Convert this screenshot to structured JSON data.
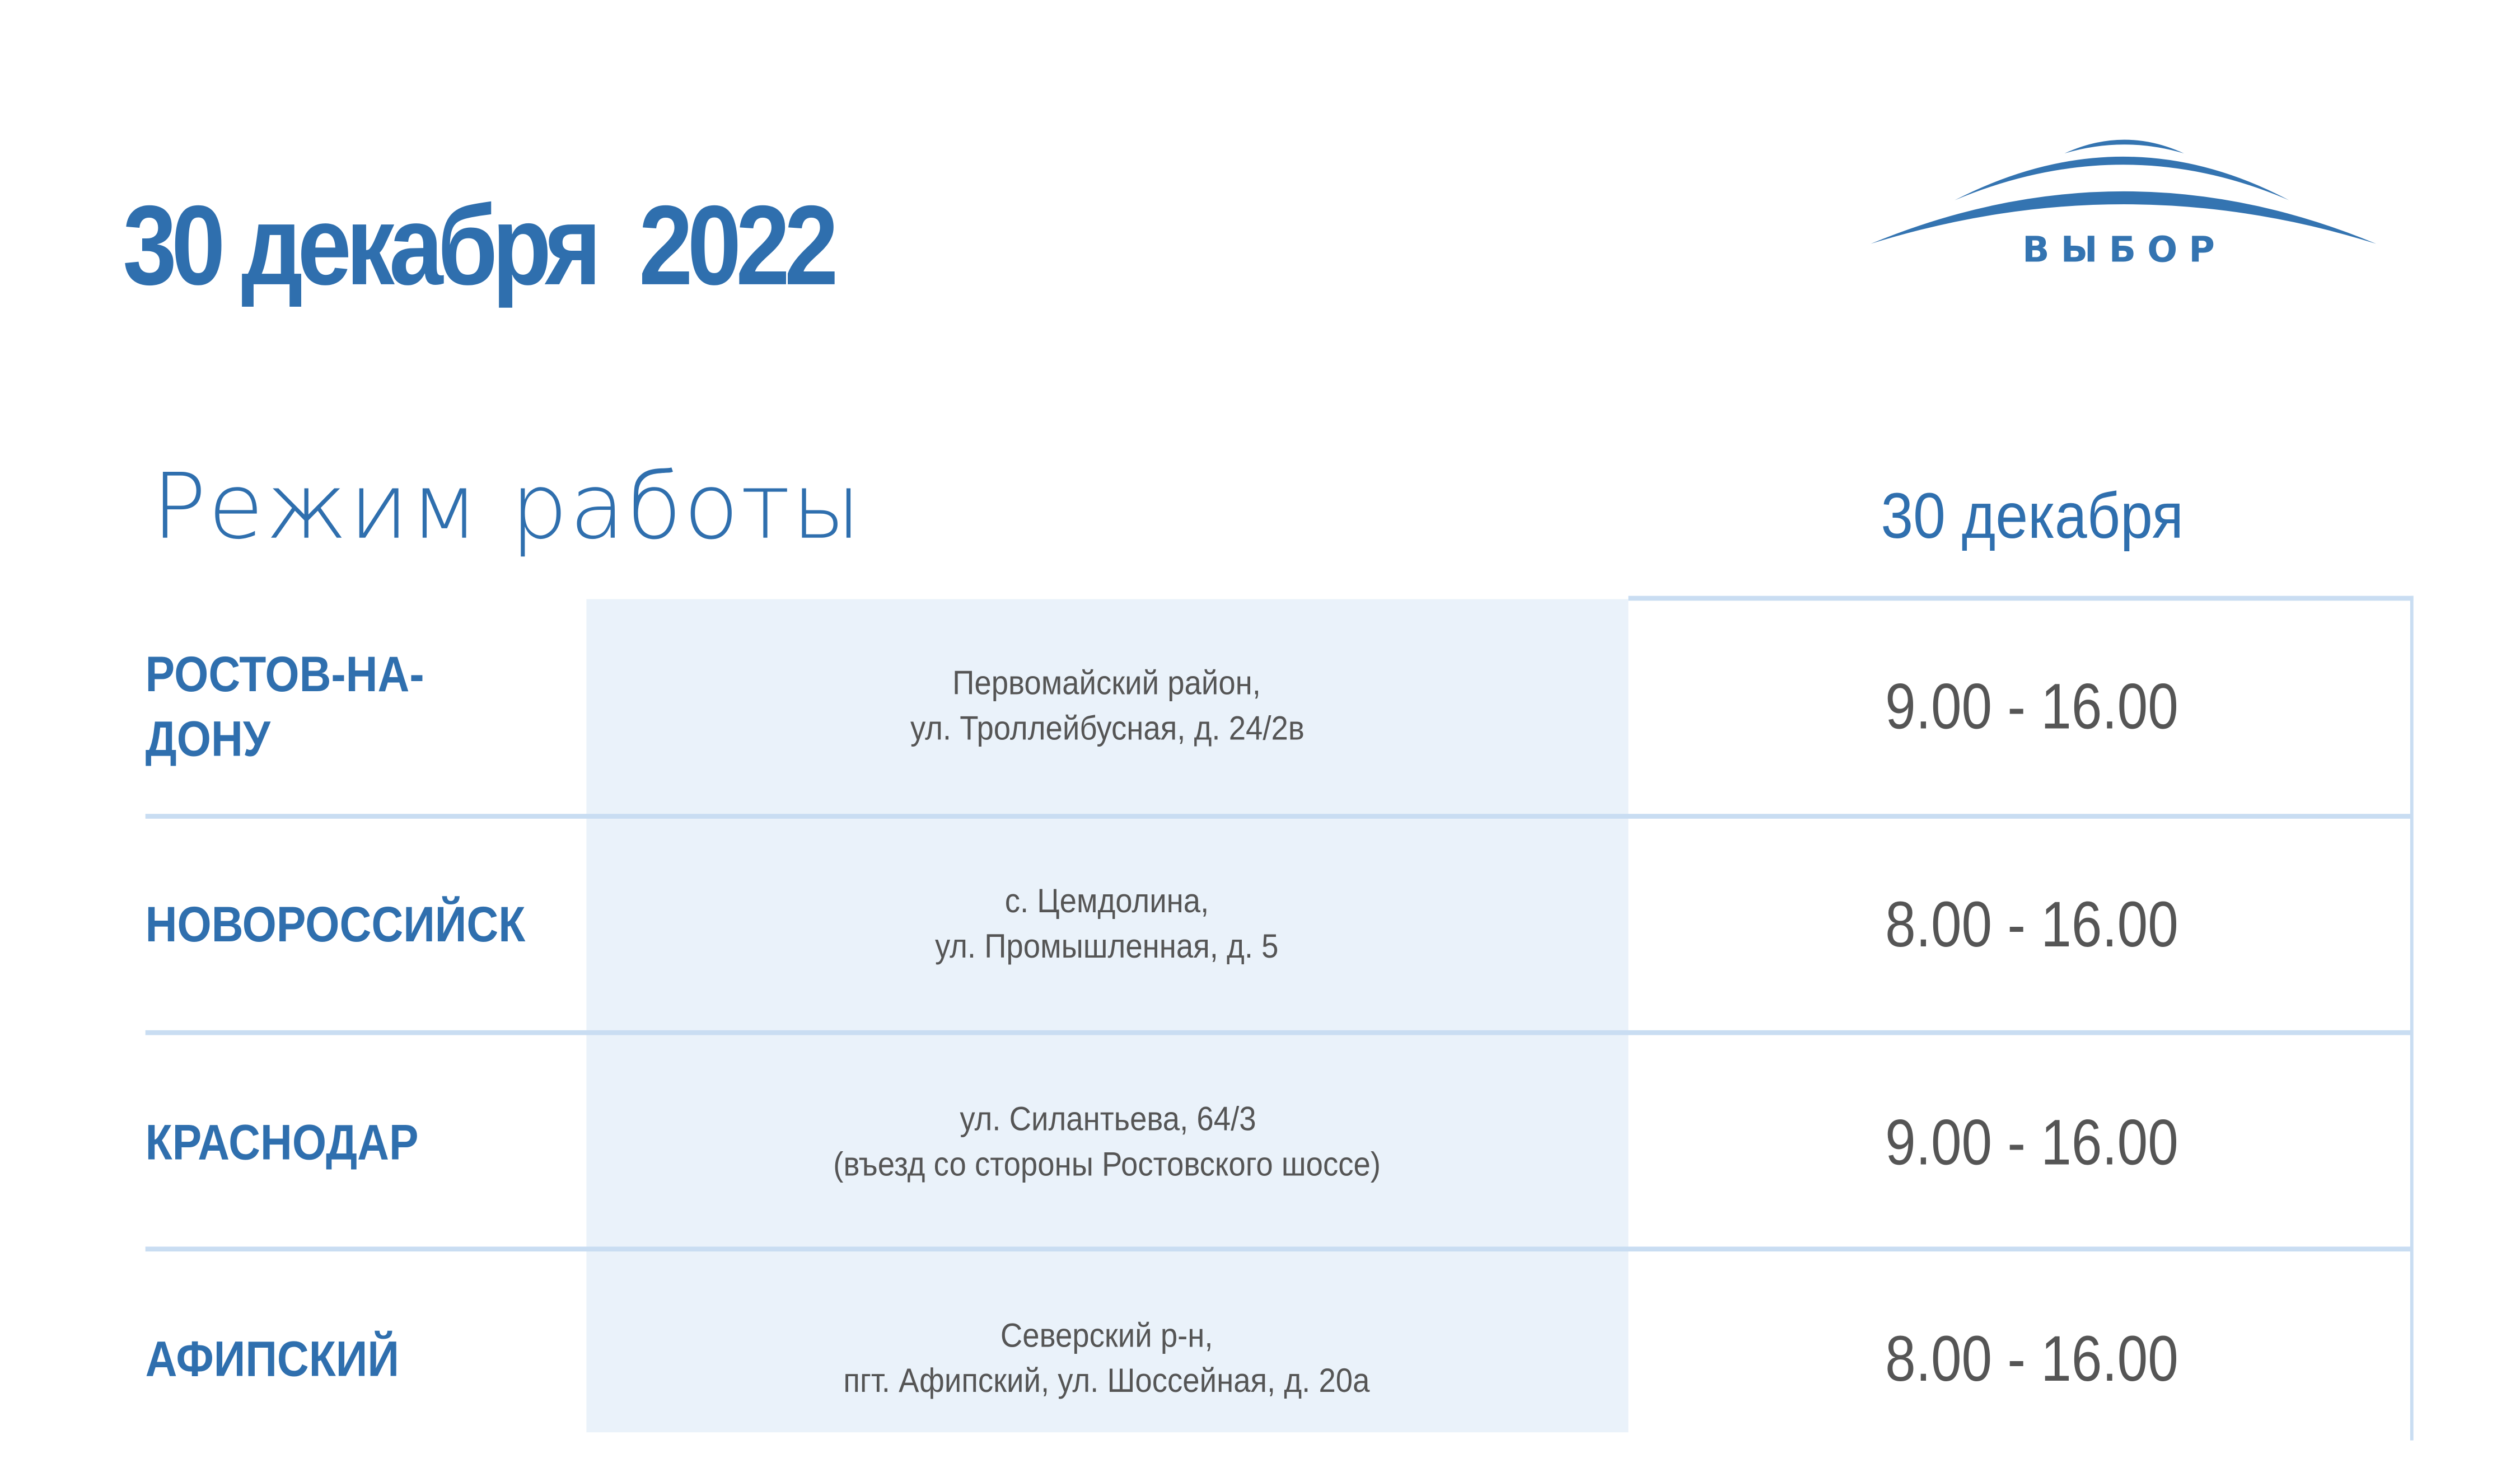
{
  "header": {
    "title": "30 декабря  2022",
    "logo_text": "ВЫБОР"
  },
  "subtitle": "Режим работы",
  "column_header": "30 декабря",
  "colors": {
    "brand_blue": "#2f6fae",
    "line": "#c9ddf2",
    "address_bg": "#eaf2fa",
    "text_gray": "#555555"
  },
  "rows": [
    {
      "city": "РОСТОВ-НА-ДОНУ",
      "address": [
        "Первомайский район,",
        "ул. Троллейбусная, д. 24/2в"
      ],
      "hours": "9.00 - 16.00"
    },
    {
      "city": "НОВОРОССИЙСК",
      "address": [
        "с. Цемдолина,",
        "ул. Промышленная, д. 5"
      ],
      "hours": "8.00 - 16.00"
    },
    {
      "city": "КРАСНОДАР",
      "address": [
        "ул. Силантьева, 64/3",
        "(въезд со стороны Ростовского шоссе)"
      ],
      "hours": "9.00 - 16.00"
    },
    {
      "city": "АФИПСКИЙ",
      "address": [
        "Северский р-н,",
        "пгт. Афипский, ул. Шоссейная, д. 20а"
      ],
      "hours": "8.00 - 16.00"
    }
  ]
}
